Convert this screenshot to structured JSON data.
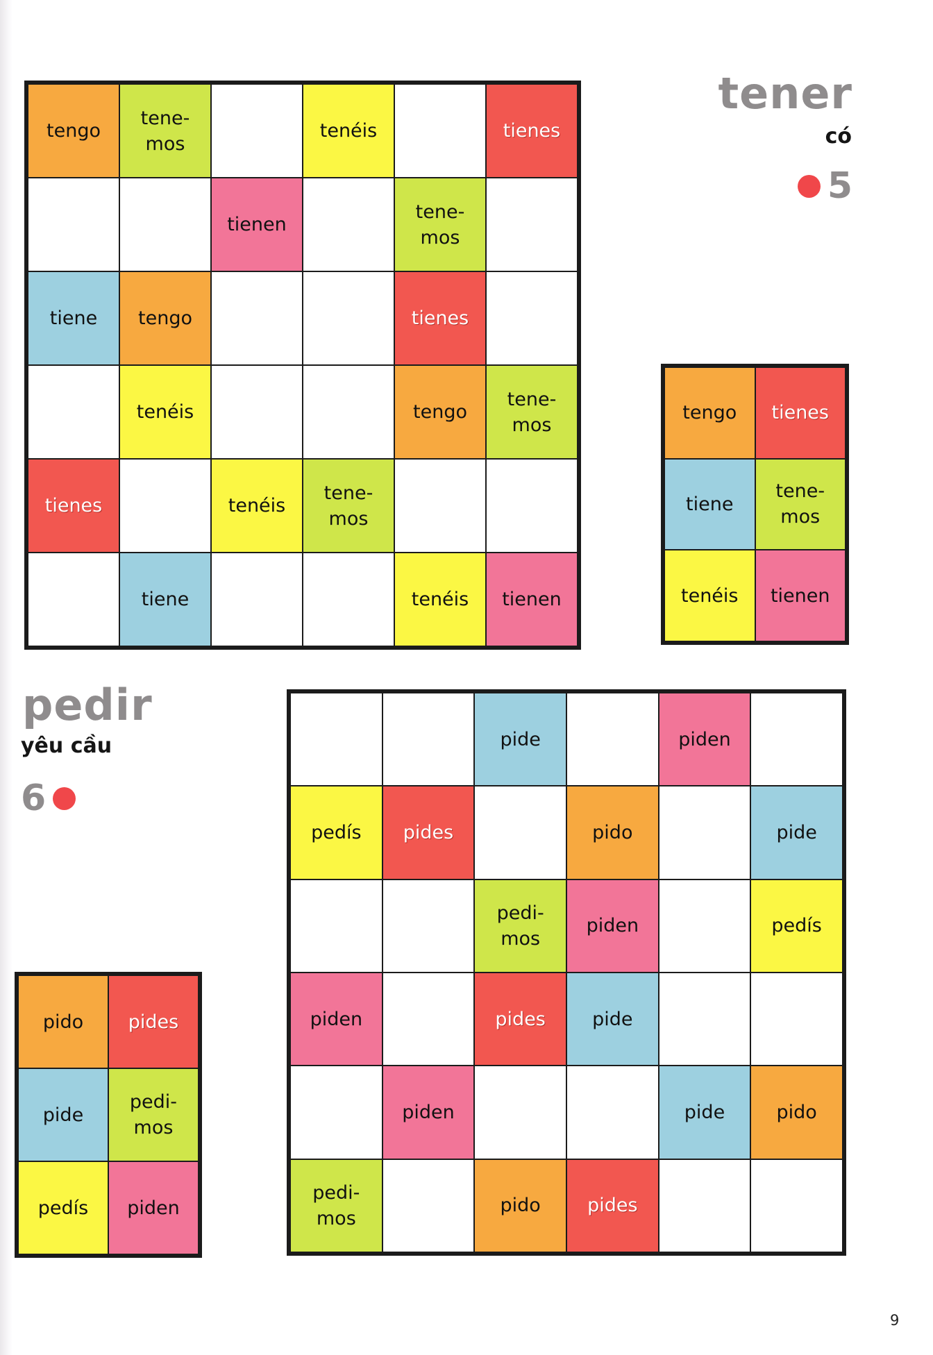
{
  "page_number": "9",
  "colors": {
    "orange": "#f7a940",
    "red": "#f25750",
    "blue": "#9dd0e0",
    "green": "#cfe64a",
    "yellow": "#fbf744",
    "pink": "#f27598",
    "title_gray": "#8f8c8d",
    "level_dot": "#f0474a"
  },
  "tener": {
    "verb": "tener",
    "meaning": "có",
    "level": "5",
    "level_icon": "red-dot-icon",
    "key": [
      {
        "text": "tengo",
        "color": "orange"
      },
      {
        "text": "tienes",
        "color": "red"
      },
      {
        "text": "tiene",
        "color": "blue"
      },
      {
        "text": "tene-\nmos",
        "color": "green"
      },
      {
        "text": "tenéis",
        "color": "yellow"
      },
      {
        "text": "tienen",
        "color": "pink"
      }
    ],
    "grid": [
      [
        {
          "text": "tengo",
          "color": "orange"
        },
        {
          "text": "tene-\nmos",
          "color": "green"
        },
        {
          "text": "",
          "color": ""
        },
        {
          "text": "tenéis",
          "color": "yellow"
        },
        {
          "text": "",
          "color": ""
        },
        {
          "text": "tienes",
          "color": "red"
        }
      ],
      [
        {
          "text": "",
          "color": ""
        },
        {
          "text": "",
          "color": ""
        },
        {
          "text": "tienen",
          "color": "pink"
        },
        {
          "text": "",
          "color": ""
        },
        {
          "text": "tene-\nmos",
          "color": "green"
        },
        {
          "text": "",
          "color": ""
        }
      ],
      [
        {
          "text": "tiene",
          "color": "blue"
        },
        {
          "text": "tengo",
          "color": "orange"
        },
        {
          "text": "",
          "color": ""
        },
        {
          "text": "",
          "color": ""
        },
        {
          "text": "tienes",
          "color": "red"
        },
        {
          "text": "",
          "color": ""
        }
      ],
      [
        {
          "text": "",
          "color": ""
        },
        {
          "text": "tenéis",
          "color": "yellow"
        },
        {
          "text": "",
          "color": ""
        },
        {
          "text": "",
          "color": ""
        },
        {
          "text": "tengo",
          "color": "orange"
        },
        {
          "text": "tene-\nmos",
          "color": "green"
        }
      ],
      [
        {
          "text": "tienes",
          "color": "red"
        },
        {
          "text": "",
          "color": ""
        },
        {
          "text": "tenéis",
          "color": "yellow"
        },
        {
          "text": "tene-\nmos",
          "color": "green"
        },
        {
          "text": "",
          "color": ""
        },
        {
          "text": "",
          "color": ""
        }
      ],
      [
        {
          "text": "",
          "color": ""
        },
        {
          "text": "tiene",
          "color": "blue"
        },
        {
          "text": "",
          "color": ""
        },
        {
          "text": "",
          "color": ""
        },
        {
          "text": "tenéis",
          "color": "yellow"
        },
        {
          "text": "tienen",
          "color": "pink"
        }
      ]
    ]
  },
  "pedir": {
    "verb": "pedir",
    "meaning": "yêu cầu",
    "level": "6",
    "level_icon": "red-dot-icon",
    "key": [
      {
        "text": "pido",
        "color": "orange"
      },
      {
        "text": "pides",
        "color": "red"
      },
      {
        "text": "pide",
        "color": "blue"
      },
      {
        "text": "pedi-\nmos",
        "color": "green"
      },
      {
        "text": "pedís",
        "color": "yellow"
      },
      {
        "text": "piden",
        "color": "pink"
      }
    ],
    "grid": [
      [
        {
          "text": "",
          "color": ""
        },
        {
          "text": "",
          "color": ""
        },
        {
          "text": "pide",
          "color": "blue"
        },
        {
          "text": "",
          "color": ""
        },
        {
          "text": "piden",
          "color": "pink"
        },
        {
          "text": "",
          "color": ""
        }
      ],
      [
        {
          "text": "pedís",
          "color": "yellow"
        },
        {
          "text": "pides",
          "color": "red"
        },
        {
          "text": "",
          "color": ""
        },
        {
          "text": "pido",
          "color": "orange"
        },
        {
          "text": "",
          "color": ""
        },
        {
          "text": "pide",
          "color": "blue"
        }
      ],
      [
        {
          "text": "",
          "color": ""
        },
        {
          "text": "",
          "color": ""
        },
        {
          "text": "pedi-\nmos",
          "color": "green"
        },
        {
          "text": "piden",
          "color": "pink"
        },
        {
          "text": "",
          "color": ""
        },
        {
          "text": "pedís",
          "color": "yellow"
        }
      ],
      [
        {
          "text": "piden",
          "color": "pink"
        },
        {
          "text": "",
          "color": ""
        },
        {
          "text": "pides",
          "color": "red"
        },
        {
          "text": "pide",
          "color": "blue"
        },
        {
          "text": "",
          "color": ""
        },
        {
          "text": "",
          "color": ""
        }
      ],
      [
        {
          "text": "",
          "color": ""
        },
        {
          "text": "piden",
          "color": "pink"
        },
        {
          "text": "",
          "color": ""
        },
        {
          "text": "",
          "color": ""
        },
        {
          "text": "pide",
          "color": "blue"
        },
        {
          "text": "pido",
          "color": "orange"
        }
      ],
      [
        {
          "text": "pedi-\nmos",
          "color": "green"
        },
        {
          "text": "",
          "color": ""
        },
        {
          "text": "pido",
          "color": "orange"
        },
        {
          "text": "pides",
          "color": "red"
        },
        {
          "text": "",
          "color": ""
        },
        {
          "text": "",
          "color": ""
        }
      ]
    ]
  }
}
